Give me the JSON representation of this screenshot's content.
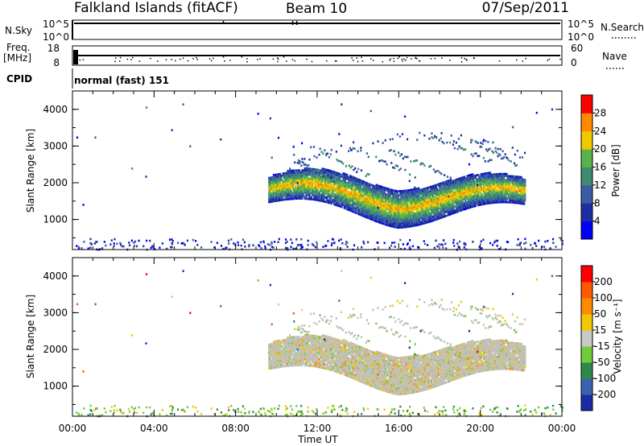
{
  "header": {
    "station": "Falkland Islands (fitACF)",
    "beam": "Beam 10",
    "date": "07/Sep/2011"
  },
  "strip": {
    "nsky_label": "N.Sky",
    "nsky_ticks": [
      "10^5",
      "10^0"
    ],
    "nsearch_label": "N.Search",
    "nsearch_ticks": [
      "10^5",
      "10^0"
    ],
    "freq_label": "Freq.",
    "freq_unit": "[MHz]",
    "freq_ticks": [
      "18",
      "8"
    ],
    "nave_label": "Nave",
    "nave_ticks": [
      "60",
      "0"
    ],
    "cpid_label": "CPID",
    "cpid_value": "normal (fast) 151"
  },
  "chart_data": [
    {
      "type": "heatmap",
      "ylabel": "Slant Range [km]",
      "xlabel": "",
      "yticks": [
        "1000",
        "2000",
        "3000",
        "4000"
      ],
      "ylim": [
        180,
        4500
      ],
      "xlim": [
        0,
        24
      ],
      "colorbar": {
        "label": "Power [dB]",
        "ticks": [
          "4",
          "8",
          "12",
          "16",
          "20",
          "24",
          "28"
        ],
        "range": [
          0,
          32
        ],
        "colors": [
          "#0000ff",
          "#1d2fa0",
          "#3a5ca6",
          "#3f8a73",
          "#58b44a",
          "#f0c800",
          "#ff8a00",
          "#ff0000"
        ]
      },
      "echo_band": {
        "start_hour": 9.6,
        "end_hour": 22.2,
        "center_range_km": 1400,
        "peak_power_db": 24
      }
    },
    {
      "type": "heatmap",
      "ylabel": "Slant Range [km]",
      "xlabel": "Time UT",
      "xticks": [
        "00:00",
        "04:00",
        "08:00",
        "12:00",
        "16:00",
        "20:00",
        "00:00"
      ],
      "yticks": [
        "1000",
        "2000",
        "3000",
        "4000"
      ],
      "ylim": [
        180,
        4500
      ],
      "xlim": [
        0,
        24
      ],
      "colorbar": {
        "label": "Velocity [m s⁻¹]",
        "ticks": [
          "200",
          "100",
          "50",
          "15",
          "-15",
          "-50",
          "-100",
          "-200"
        ],
        "colors": [
          "#1a2ba8",
          "#3a64b0",
          "#2f8a4a",
          "#6fcc3a",
          "#c8c8c8",
          "#f0c800",
          "#ff8a00",
          "#ff5a00",
          "#ff0000"
        ]
      },
      "ground_scatter_color": "#c0c0b8"
    }
  ]
}
